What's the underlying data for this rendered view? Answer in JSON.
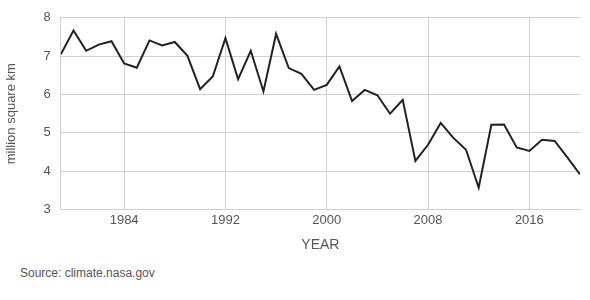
{
  "chart_data": {
    "type": "line",
    "x_label": "YEAR",
    "y_label": "million square km",
    "source": "Source: climate.nasa.gov",
    "x": [
      1979,
      1980,
      1981,
      1982,
      1983,
      1984,
      1985,
      1986,
      1987,
      1988,
      1989,
      1990,
      1991,
      1992,
      1993,
      1994,
      1995,
      1996,
      1997,
      1998,
      1999,
      2000,
      2001,
      2002,
      2003,
      2004,
      2005,
      2006,
      2007,
      2008,
      2009,
      2010,
      2011,
      2012,
      2013,
      2014,
      2015,
      2016,
      2017,
      2018,
      2019,
      2020
    ],
    "values": [
      7.05,
      7.67,
      7.14,
      7.3,
      7.39,
      6.81,
      6.7,
      7.41,
      7.28,
      7.37,
      7.01,
      6.14,
      6.47,
      7.47,
      6.4,
      7.14,
      6.08,
      7.58,
      6.69,
      6.54,
      6.12,
      6.25,
      6.73,
      5.83,
      6.12,
      5.98,
      5.5,
      5.86,
      4.27,
      4.69,
      5.26,
      4.87,
      4.56,
      3.57,
      5.21,
      5.22,
      4.62,
      4.53,
      4.82,
      4.79,
      4.36,
      3.92
    ],
    "color": "#222222",
    "xlim": [
      1979,
      2020
    ],
    "xticks": [
      1984,
      1992,
      2000,
      2008,
      2016
    ],
    "ylim": [
      3,
      8
    ],
    "yticks": [
      3,
      4,
      5,
      6,
      7,
      8
    ],
    "grid": true
  }
}
